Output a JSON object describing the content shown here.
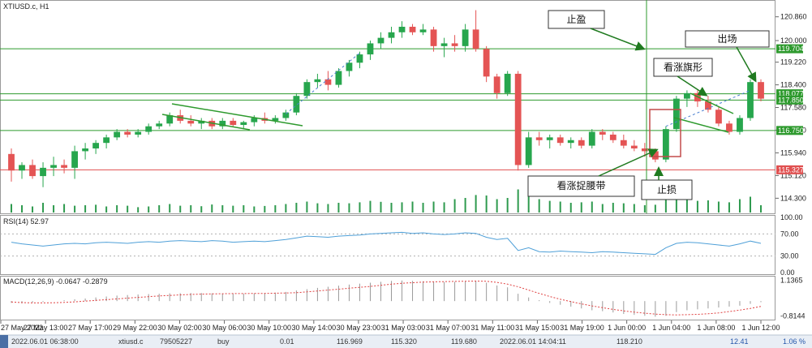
{
  "chart_data": {
    "type": "candlestick",
    "symbol_label": "XTIUSD.c, H1",
    "price_axis": {
      "min": 113.9,
      "max": 121.35,
      "ticks": [
        "120.860",
        "120.000",
        "119.220",
        "118.400",
        "117.580",
        "116.760",
        "115.940",
        "115.120",
        "114.300"
      ],
      "levels": [
        {
          "price": 119.704,
          "label": "119.704",
          "color": "#2e9a2e",
          "line": true
        },
        {
          "price": 118.077,
          "label": "118.077",
          "color": "#2e9a2e",
          "line": true
        },
        {
          "price": 117.85,
          "label": "117.850",
          "color": "#2e9a2e",
          "line": true
        },
        {
          "price": 116.75,
          "label": "116.750",
          "color": "#2e9a2e",
          "line": true
        },
        {
          "price": 115.327,
          "label": "115.327",
          "color": "#e05050",
          "line": true
        }
      ]
    },
    "candles": [
      {
        "o": 115.9,
        "h": 116.1,
        "l": 114.9,
        "c": 115.3
      },
      {
        "o": 115.3,
        "h": 115.6,
        "l": 115.0,
        "c": 115.5
      },
      {
        "o": 115.5,
        "h": 115.7,
        "l": 115.0,
        "c": 115.1
      },
      {
        "o": 115.1,
        "h": 115.6,
        "l": 114.7,
        "c": 115.4
      },
      {
        "o": 115.4,
        "h": 115.8,
        "l": 115.1,
        "c": 115.5
      },
      {
        "o": 115.5,
        "h": 115.7,
        "l": 115.2,
        "c": 115.4
      },
      {
        "o": 115.4,
        "h": 116.2,
        "l": 115.0,
        "c": 116.0
      },
      {
        "o": 116.0,
        "h": 116.3,
        "l": 115.7,
        "c": 116.1
      },
      {
        "o": 116.1,
        "h": 116.4,
        "l": 115.9,
        "c": 116.3
      },
      {
        "o": 116.3,
        "h": 116.6,
        "l": 116.1,
        "c": 116.5
      },
      {
        "o": 116.5,
        "h": 116.8,
        "l": 116.4,
        "c": 116.7
      },
      {
        "o": 116.7,
        "h": 116.8,
        "l": 116.5,
        "c": 116.6
      },
      {
        "o": 116.6,
        "h": 116.8,
        "l": 116.5,
        "c": 116.7
      },
      {
        "o": 116.7,
        "h": 117.0,
        "l": 116.6,
        "c": 116.9
      },
      {
        "o": 116.9,
        "h": 117.1,
        "l": 116.8,
        "c": 117.0
      },
      {
        "o": 117.0,
        "h": 117.4,
        "l": 116.9,
        "c": 117.3
      },
      {
        "o": 117.3,
        "h": 117.5,
        "l": 117.0,
        "c": 117.1
      },
      {
        "o": 117.1,
        "h": 117.3,
        "l": 116.9,
        "c": 117.0
      },
      {
        "o": 117.0,
        "h": 117.2,
        "l": 116.8,
        "c": 117.1
      },
      {
        "o": 117.1,
        "h": 117.2,
        "l": 116.8,
        "c": 116.9
      },
      {
        "o": 116.9,
        "h": 117.2,
        "l": 116.8,
        "c": 117.1
      },
      {
        "o": 117.1,
        "h": 117.2,
        "l": 116.9,
        "c": 116.95
      },
      {
        "o": 116.95,
        "h": 117.1,
        "l": 116.8,
        "c": 117.05
      },
      {
        "o": 117.05,
        "h": 117.3,
        "l": 116.9,
        "c": 117.2
      },
      {
        "o": 117.2,
        "h": 117.4,
        "l": 117.0,
        "c": 117.1
      },
      {
        "o": 117.1,
        "h": 117.3,
        "l": 117.0,
        "c": 117.2
      },
      {
        "o": 117.2,
        "h": 117.5,
        "l": 117.1,
        "c": 117.4
      },
      {
        "o": 117.4,
        "h": 118.1,
        "l": 117.3,
        "c": 118.0
      },
      {
        "o": 118.0,
        "h": 118.6,
        "l": 117.9,
        "c": 118.5
      },
      {
        "o": 118.5,
        "h": 118.8,
        "l": 118.3,
        "c": 118.6
      },
      {
        "o": 118.6,
        "h": 118.9,
        "l": 118.2,
        "c": 118.4
      },
      {
        "o": 118.4,
        "h": 119.0,
        "l": 118.3,
        "c": 118.9
      },
      {
        "o": 118.9,
        "h": 119.3,
        "l": 118.7,
        "c": 119.2
      },
      {
        "o": 119.2,
        "h": 119.6,
        "l": 119.0,
        "c": 119.5
      },
      {
        "o": 119.5,
        "h": 120.0,
        "l": 119.3,
        "c": 119.9
      },
      {
        "o": 119.9,
        "h": 120.3,
        "l": 119.7,
        "c": 120.1
      },
      {
        "o": 120.1,
        "h": 120.5,
        "l": 119.9,
        "c": 120.3
      },
      {
        "o": 120.3,
        "h": 120.7,
        "l": 120.1,
        "c": 120.5
      },
      {
        "o": 120.5,
        "h": 120.6,
        "l": 120.2,
        "c": 120.3
      },
      {
        "o": 120.3,
        "h": 120.6,
        "l": 120.2,
        "c": 120.4
      },
      {
        "o": 120.4,
        "h": 120.5,
        "l": 119.6,
        "c": 119.8
      },
      {
        "o": 119.8,
        "h": 120.1,
        "l": 119.4,
        "c": 119.9
      },
      {
        "o": 119.9,
        "h": 120.2,
        "l": 119.6,
        "c": 119.8
      },
      {
        "o": 119.8,
        "h": 120.6,
        "l": 119.6,
        "c": 120.4
      },
      {
        "o": 120.4,
        "h": 121.1,
        "l": 119.6,
        "c": 119.7
      },
      {
        "o": 119.7,
        "h": 119.8,
        "l": 118.5,
        "c": 118.7
      },
      {
        "o": 118.7,
        "h": 118.8,
        "l": 117.9,
        "c": 118.1
      },
      {
        "o": 118.1,
        "h": 118.9,
        "l": 118.0,
        "c": 118.8
      },
      {
        "o": 118.8,
        "h": 118.9,
        "l": 115.3,
        "c": 115.5
      },
      {
        "o": 115.5,
        "h": 116.7,
        "l": 115.4,
        "c": 116.5
      },
      {
        "o": 116.5,
        "h": 116.7,
        "l": 116.2,
        "c": 116.4
      },
      {
        "o": 116.4,
        "h": 116.6,
        "l": 116.1,
        "c": 116.5
      },
      {
        "o": 116.5,
        "h": 116.6,
        "l": 116.2,
        "c": 116.3
      },
      {
        "o": 116.3,
        "h": 116.5,
        "l": 116.1,
        "c": 116.4
      },
      {
        "o": 116.4,
        "h": 116.5,
        "l": 116.1,
        "c": 116.2
      },
      {
        "o": 116.2,
        "h": 116.8,
        "l": 116.1,
        "c": 116.7
      },
      {
        "o": 116.7,
        "h": 116.8,
        "l": 116.4,
        "c": 116.6
      },
      {
        "o": 116.6,
        "h": 116.7,
        "l": 116.3,
        "c": 116.4
      },
      {
        "o": 116.4,
        "h": 116.6,
        "l": 116.1,
        "c": 116.2
      },
      {
        "o": 116.2,
        "h": 116.4,
        "l": 116.0,
        "c": 116.1
      },
      {
        "o": 116.1,
        "h": 116.3,
        "l": 115.8,
        "c": 116.0
      },
      {
        "o": 116.0,
        "h": 116.1,
        "l": 115.6,
        "c": 115.7
      },
      {
        "o": 115.7,
        "h": 116.9,
        "l": 115.6,
        "c": 116.8
      },
      {
        "o": 116.8,
        "h": 118.0,
        "l": 116.7,
        "c": 117.9
      },
      {
        "o": 117.9,
        "h": 118.2,
        "l": 117.6,
        "c": 118.1
      },
      {
        "o": 118.1,
        "h": 118.2,
        "l": 117.6,
        "c": 117.8
      },
      {
        "o": 117.8,
        "h": 118.0,
        "l": 117.4,
        "c": 117.5
      },
      {
        "o": 117.5,
        "h": 117.6,
        "l": 116.9,
        "c": 117.0
      },
      {
        "o": 117.0,
        "h": 117.1,
        "l": 116.6,
        "c": 116.7
      },
      {
        "o": 116.7,
        "h": 117.3,
        "l": 116.6,
        "c": 117.2
      },
      {
        "o": 117.2,
        "h": 118.6,
        "l": 117.1,
        "c": 118.5
      },
      {
        "o": 118.5,
        "h": 118.6,
        "l": 117.8,
        "c": 117.9
      }
    ],
    "volume": [
      0.35,
      0.3,
      0.25,
      0.4,
      0.3,
      0.35,
      0.28,
      0.3,
      0.32,
      0.25,
      0.3,
      0.28,
      0.22,
      0.25,
      0.3,
      0.35,
      0.28,
      0.3,
      0.26,
      0.33,
      0.3,
      0.28,
      0.3,
      0.25,
      0.27,
      0.3,
      0.35,
      0.4,
      0.45,
      0.38,
      0.35,
      0.4,
      0.38,
      0.42,
      0.48,
      0.44,
      0.4,
      0.42,
      0.45,
      0.4,
      0.45,
      0.42,
      0.55,
      0.6,
      0.72,
      0.7,
      0.55,
      0.6,
      0.95,
      0.8,
      0.55,
      0.48,
      0.45,
      0.4,
      0.42,
      0.45,
      0.35,
      0.4,
      0.38,
      0.35,
      0.3,
      0.32,
      0.55,
      0.85,
      0.62,
      0.48,
      0.5,
      0.45,
      0.42,
      0.55,
      0.65,
      0.3
    ],
    "x_ticks": [
      "27 May 2022",
      "27 May 13:00",
      "27 May 17:00",
      "29 May 22:00",
      "30 May 02:00",
      "30 May 06:00",
      "30 May 10:00",
      "30 May 14:00",
      "30 May 23:00",
      "31 May 03:00",
      "31 May 07:00",
      "31 May 11:00",
      "31 May 15:00",
      "31 May 19:00",
      "1 Jun 00:00",
      "1 Jun 04:00",
      "1 Jun 08:00",
      "1 Jun 12:00"
    ],
    "rsi": {
      "label": "RSI(14) 52.97",
      "ticks": [
        "100.00",
        "70.00",
        "30.00",
        "0.00"
      ],
      "values": [
        55,
        52,
        50,
        48,
        50,
        52,
        53,
        52,
        54,
        55,
        54,
        53,
        55,
        56,
        55,
        57,
        58,
        57,
        56,
        58,
        57,
        55,
        56,
        57,
        56,
        58,
        60,
        63,
        66,
        65,
        64,
        66,
        67,
        68,
        70,
        71,
        72,
        73,
        71,
        72,
        70,
        69,
        70,
        72,
        71,
        64,
        60,
        62,
        40,
        45,
        38,
        37,
        39,
        38,
        37,
        36,
        38,
        37,
        36,
        35,
        34,
        33,
        45,
        53,
        55,
        54,
        52,
        50,
        48,
        52,
        57,
        53
      ]
    },
    "macd": {
      "label": "MACD(12,26,9) -0.0647 -0.2879",
      "ticks": [
        "1.1365",
        "-0.8144"
      ],
      "min": -0.92,
      "max": 1.2,
      "signal": [
        -0.05,
        -0.08,
        -0.1,
        -0.1,
        -0.09,
        -0.07,
        -0.04,
        0.0,
        0.04,
        0.08,
        0.12,
        0.16,
        0.2,
        0.24,
        0.28,
        0.31,
        0.34,
        0.36,
        0.38,
        0.39,
        0.4,
        0.41,
        0.41,
        0.42,
        0.42,
        0.43,
        0.44,
        0.46,
        0.5,
        0.55,
        0.6,
        0.65,
        0.7,
        0.75,
        0.8,
        0.86,
        0.92,
        0.97,
        1.0,
        1.03,
        1.05,
        1.06,
        1.07,
        1.08,
        1.09,
        1.08,
        1.02,
        0.92,
        0.78,
        0.6,
        0.42,
        0.25,
        0.1,
        -0.03,
        -0.15,
        -0.26,
        -0.36,
        -0.45,
        -0.53,
        -0.6,
        -0.66,
        -0.71,
        -0.74,
        -0.75,
        -0.74,
        -0.72,
        -0.69,
        -0.64,
        -0.57,
        -0.49,
        -0.4,
        -0.29
      ],
      "histogram": [
        -0.1,
        -0.12,
        -0.08,
        -0.05,
        0.0,
        0.05,
        0.1,
        0.14,
        0.2,
        0.25,
        0.3,
        0.33,
        0.36,
        0.38,
        0.4,
        0.42,
        0.43,
        0.44,
        0.44,
        0.42,
        0.41,
        0.4,
        0.4,
        0.42,
        0.44,
        0.46,
        0.5,
        0.58,
        0.65,
        0.72,
        0.78,
        0.84,
        0.9,
        0.95,
        1.0,
        1.05,
        1.1,
        1.12,
        1.1,
        1.08,
        1.06,
        1.04,
        1.05,
        1.08,
        1.1,
        1.0,
        0.85,
        0.75,
        0.4,
        0.2,
        0.05,
        -0.1,
        -0.2,
        -0.3,
        -0.4,
        -0.5,
        -0.55,
        -0.62,
        -0.7,
        -0.75,
        -0.8,
        -0.85,
        -0.8,
        -0.6,
        -0.5,
        -0.45,
        -0.4,
        -0.35,
        -0.3,
        -0.25,
        -0.15,
        -0.06
      ]
    },
    "annotations": [
      {
        "text": "止盈"
      },
      {
        "text": "出场"
      },
      {
        "text": "看涨旗形"
      },
      {
        "text": "看涨捉腰带"
      },
      {
        "text": "止损"
      }
    ]
  },
  "status_bar": {
    "time": "2022.06.01 06:38:00",
    "symbol": "xtiusd.c",
    "ticket": "79505227",
    "type": "buy",
    "volume": "0.01",
    "open_price": "116.969",
    "sl": "115.320",
    "tp": "119.680",
    "close_time": "2022.06.01 14:04:11",
    "close_price": "118.210",
    "profit": "12.41",
    "percent": "1.06 %"
  },
  "colors": {
    "bull": "#27a64d",
    "bear": "#e45454",
    "level_green": "#2e9a2e",
    "level_red": "#e05050",
    "rsi_line": "#4fa0d8",
    "macd_hist": "#9a9a9a",
    "macd_signal": "#e04040",
    "arrow": "#1f7a1f"
  }
}
